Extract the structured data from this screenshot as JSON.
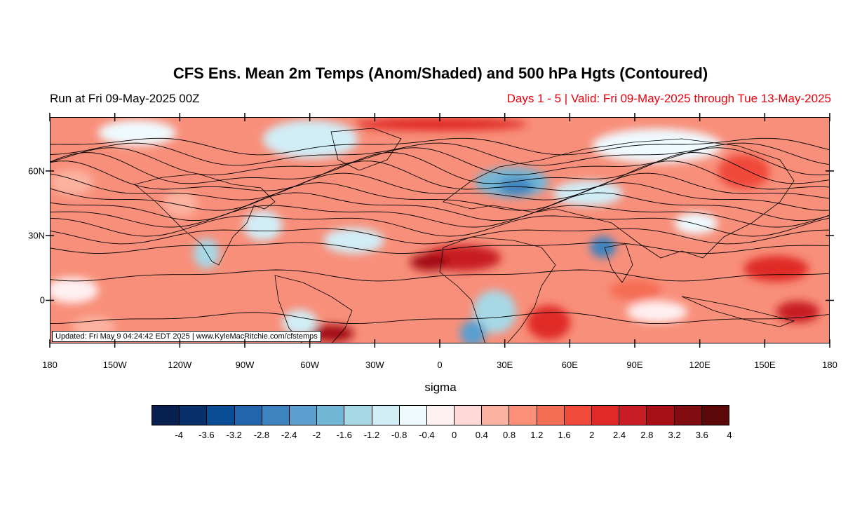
{
  "title": "CFS Ens. Mean 2m Temps (Anom/Shaded) and 500 hPa Hgts (Contoured)",
  "run_label": "Run at Fri 09-May-2025 00Z",
  "valid_label": "Days 1 - 5 | Valid: Fri 09-May-2025 through Tue 13-May-2025",
  "update_label": "Updated: Fri May  9 04:24:42 EDT 2025 | www.KyleMacRitchie.com/cfstemps",
  "map": {
    "lon_range": [
      -180,
      180
    ],
    "lat_range": [
      -20,
      85
    ],
    "x_ticks": [
      {
        "lon": -180,
        "label": "180"
      },
      {
        "lon": -150,
        "label": "150W"
      },
      {
        "lon": -120,
        "label": "120W"
      },
      {
        "lon": -90,
        "label": "90W"
      },
      {
        "lon": -60,
        "label": "60W"
      },
      {
        "lon": -30,
        "label": "30W"
      },
      {
        "lon": 0,
        "label": "0"
      },
      {
        "lon": 30,
        "label": "30E"
      },
      {
        "lon": 60,
        "label": "60E"
      },
      {
        "lon": 90,
        "label": "90E"
      },
      {
        "lon": 120,
        "label": "120E"
      },
      {
        "lon": 150,
        "label": "150E"
      },
      {
        "lon": 180,
        "label": "180"
      }
    ],
    "y_ticks": [
      {
        "lat": 60,
        "label": "60N"
      },
      {
        "lat": 30,
        "label": "30N"
      },
      {
        "lat": 0,
        "label": "0"
      }
    ]
  },
  "colorbar": {
    "title": "sigma",
    "colors": [
      "#08204f",
      "#08306b",
      "#0a4d94",
      "#2166ac",
      "#3d83bf",
      "#5a9fcf",
      "#72b6d6",
      "#a6d8e6",
      "#d1edf6",
      "#effaff",
      "#fff0f2",
      "#ffd8d8",
      "#fcb2a0",
      "#fb8f78",
      "#f66d55",
      "#f04a3a",
      "#e02a28",
      "#c81d24",
      "#a50f15",
      "#800b10",
      "#5c0808"
    ],
    "labels": [
      "-4",
      "-3.6",
      "-3.2",
      "-2.8",
      "-2.4",
      "-2",
      "-1.6",
      "-1.2",
      "-0.8",
      "-0.4",
      "0",
      "0.4",
      "0.8",
      "1.2",
      "1.6",
      "2",
      "2.4",
      "2.8",
      "3.2",
      "3.6",
      "4"
    ]
  },
  "anomaly_blobs": [
    {
      "lon": -82,
      "lat": 35,
      "rx": 9,
      "ry": 7,
      "color": "#d1edf6"
    },
    {
      "lon": -108,
      "lat": 22,
      "rx": 6,
      "ry": 7,
      "color": "#a6d8e6"
    },
    {
      "lon": -60,
      "lat": 75,
      "rx": 22,
      "ry": 9,
      "color": "#d1edf6"
    },
    {
      "lon": -140,
      "lat": 78,
      "rx": 18,
      "ry": 6,
      "color": "#effaff"
    },
    {
      "lon": 33,
      "lat": 55,
      "rx": 17,
      "ry": 7,
      "color": "#72b6d6"
    },
    {
      "lon": 35,
      "lat": 53,
      "rx": 8,
      "ry": 4,
      "color": "#3d83bf"
    },
    {
      "lon": 68,
      "lat": 50,
      "rx": 16,
      "ry": 6,
      "color": "#d1edf6"
    },
    {
      "lon": 75,
      "lat": 25,
      "rx": 6,
      "ry": 5,
      "color": "#3d83bf"
    },
    {
      "lon": 100,
      "lat": 72,
      "rx": 30,
      "ry": 8,
      "color": "#effaff"
    },
    {
      "lon": 118,
      "lat": 36,
      "rx": 10,
      "ry": 5,
      "color": "#effaff"
    },
    {
      "lon": -40,
      "lat": 28,
      "rx": 14,
      "ry": 6,
      "color": "#d1edf6"
    },
    {
      "lon": 25,
      "lat": -5,
      "rx": 10,
      "ry": 10,
      "color": "#a6d8e6"
    },
    {
      "lon": 15,
      "lat": -15,
      "rx": 6,
      "ry": 6,
      "color": "#5a9fcf"
    },
    {
      "lon": -65,
      "lat": -10,
      "rx": 8,
      "ry": 6,
      "color": "#d1edf6"
    },
    {
      "lon": -170,
      "lat": 5,
      "rx": 12,
      "ry": 6,
      "color": "#fff0f2"
    },
    {
      "lon": 100,
      "lat": -5,
      "rx": 14,
      "ry": 5,
      "color": "#fff0f2"
    },
    {
      "lon": 10,
      "lat": 20,
      "rx": 18,
      "ry": 6,
      "color": "#c81d24"
    },
    {
      "lon": -5,
      "lat": 18,
      "rx": 9,
      "ry": 4,
      "color": "#a50f15"
    },
    {
      "lon": -50,
      "lat": -15,
      "rx": 10,
      "ry": 4,
      "color": "#a50f15"
    },
    {
      "lon": 155,
      "lat": 15,
      "rx": 15,
      "ry": 6,
      "color": "#e02a28"
    },
    {
      "lon": 165,
      "lat": -5,
      "rx": 10,
      "ry": 5,
      "color": "#c81d24"
    },
    {
      "lon": 50,
      "lat": -10,
      "rx": 10,
      "ry": 8,
      "color": "#e02a28"
    },
    {
      "lon": -160,
      "lat": -12,
      "rx": 10,
      "ry": 5,
      "color": "#fcb2a0"
    },
    {
      "lon": 90,
      "lat": 5,
      "rx": 12,
      "ry": 5,
      "color": "#f66d55"
    },
    {
      "lon": -120,
      "lat": 45,
      "rx": 8,
      "ry": 6,
      "color": "#fcb2a0"
    },
    {
      "lon": 140,
      "lat": 60,
      "rx": 12,
      "ry": 8,
      "color": "#f04a3a"
    },
    {
      "lon": -170,
      "lat": 55,
      "rx": 10,
      "ry": 6,
      "color": "#fcb2a0"
    },
    {
      "lon": 0,
      "lat": 82,
      "rx": 40,
      "ry": 3,
      "color": "#e02a28"
    }
  ],
  "height_contours": [
    {
      "lat": 72,
      "amp": 3
    },
    {
      "lat": 68,
      "amp": 4
    },
    {
      "lat": 64,
      "amp": 5
    },
    {
      "lat": 60,
      "amp": 6
    },
    {
      "lat": 56,
      "amp": 6
    },
    {
      "lat": 52,
      "amp": 5
    },
    {
      "lat": 48,
      "amp": 5
    },
    {
      "lat": 44,
      "amp": 5
    },
    {
      "lat": 40,
      "amp": 4
    },
    {
      "lat": 36,
      "amp": 4
    },
    {
      "lat": 31,
      "amp": 3
    },
    {
      "lat": 25,
      "amp": 2
    },
    {
      "lat": 12,
      "amp": 2
    },
    {
      "lat": -8,
      "amp": 2
    }
  ]
}
